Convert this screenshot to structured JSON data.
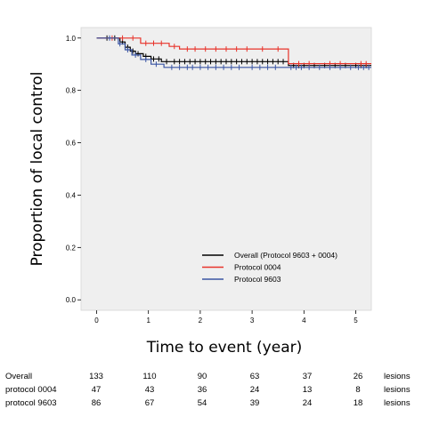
{
  "chart_data": {
    "type": "line",
    "title": "",
    "xlabel": "Time to event (year)",
    "ylabel": "Proportion of local control",
    "xlim": [
      -0.3,
      5.3
    ],
    "ylim": [
      -0.04,
      1.04
    ],
    "xticks": [
      0,
      1,
      2,
      3,
      4,
      5
    ],
    "xtick_labels": [
      "0",
      "1",
      "2",
      "3",
      "4",
      "5"
    ],
    "yticks": [
      0.0,
      0.2,
      0.4,
      0.6,
      0.8,
      1.0
    ],
    "ytick_labels": [
      "0.0",
      "0.2",
      "0.4",
      "0.6",
      "0.8",
      "1.0"
    ],
    "legend_position": "bottom-right",
    "series": [
      {
        "name": "Overall (Protocol 9603 + 0004)",
        "color": "#000000",
        "steps": [
          [
            0,
            1.0
          ],
          [
            0.45,
            0.985
          ],
          [
            0.55,
            0.965
          ],
          [
            0.65,
            0.95
          ],
          [
            0.75,
            0.94
          ],
          [
            0.9,
            0.93
          ],
          [
            1.05,
            0.92
          ],
          [
            1.25,
            0.91
          ],
          [
            3.7,
            0.895
          ],
          [
            5.3,
            0.895
          ]
        ],
        "censored": [
          0.2,
          0.35,
          0.5,
          0.6,
          0.7,
          0.8,
          0.95,
          1.1,
          1.2,
          1.35,
          1.5,
          1.6,
          1.7,
          1.8,
          1.9,
          2.0,
          2.1,
          2.2,
          2.3,
          2.4,
          2.5,
          2.6,
          2.7,
          2.8,
          2.9,
          3.0,
          3.1,
          3.2,
          3.3,
          3.4,
          3.5,
          3.6,
          3.8,
          3.9,
          4.0,
          4.2,
          4.4,
          4.6,
          4.8,
          5.0,
          5.1,
          5.2
        ]
      },
      {
        "name": "Protocol 0004",
        "color": "#e8332a",
        "steps": [
          [
            0,
            1.0
          ],
          [
            0.85,
            0.98
          ],
          [
            1.4,
            0.968
          ],
          [
            1.6,
            0.958
          ],
          [
            3.7,
            0.902
          ],
          [
            5.3,
            0.902
          ]
        ],
        "censored": [
          0.3,
          0.5,
          0.7,
          0.95,
          1.1,
          1.25,
          1.5,
          1.75,
          1.9,
          2.1,
          2.3,
          2.5,
          2.7,
          2.9,
          3.2,
          3.5,
          3.9,
          4.1,
          4.5,
          4.7,
          5.1,
          5.2
        ]
      },
      {
        "name": "Protocol 9603",
        "color": "#3a55a4",
        "steps": [
          [
            0,
            1.0
          ],
          [
            0.42,
            0.978
          ],
          [
            0.55,
            0.955
          ],
          [
            0.68,
            0.935
          ],
          [
            0.85,
            0.918
          ],
          [
            1.05,
            0.9
          ],
          [
            1.3,
            0.888
          ],
          [
            5.3,
            0.888
          ]
        ],
        "censored": [
          0.25,
          0.45,
          0.6,
          0.75,
          0.95,
          1.15,
          1.45,
          1.6,
          1.75,
          1.85,
          2.0,
          2.15,
          2.3,
          2.45,
          2.6,
          2.75,
          3.0,
          3.15,
          3.3,
          3.45,
          3.75,
          3.85,
          3.95,
          4.1,
          4.3,
          4.5,
          4.7,
          4.9,
          5.05,
          5.15,
          5.25
        ]
      }
    ]
  },
  "risk_table": {
    "rows": [
      {
        "label": "Overall",
        "counts": [
          "133",
          "110",
          "90",
          "63",
          "37",
          "26"
        ],
        "unit": "lesions"
      },
      {
        "label": "protocol 0004",
        "counts": [
          "47",
          "43",
          "36",
          "24",
          "13",
          "8"
        ],
        "unit": "lesions"
      },
      {
        "label": "protocol 9603",
        "counts": [
          "86",
          "67",
          "54",
          "39",
          "24",
          "18"
        ],
        "unit": "lesions"
      }
    ]
  }
}
